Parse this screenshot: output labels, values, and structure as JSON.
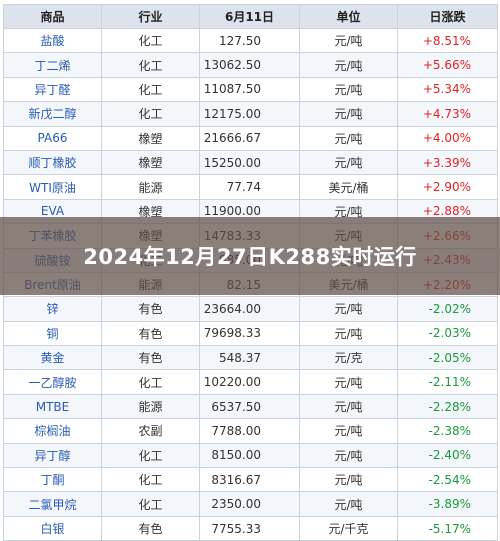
{
  "table": {
    "headers": {
      "name": "商品",
      "category": "行业",
      "price": "6月11日",
      "unit": "单位",
      "change": "日涨跌"
    },
    "rows": [
      {
        "name": "盐酸",
        "category": "化工",
        "price": "127.50",
        "unit": "元/吨",
        "change": "+8.51%",
        "dir": "up"
      },
      {
        "name": "丁二烯",
        "category": "化工",
        "price": "13062.50",
        "unit": "元/吨",
        "change": "+5.66%",
        "dir": "up"
      },
      {
        "name": "异丁醛",
        "category": "化工",
        "price": "11087.50",
        "unit": "元/吨",
        "change": "+5.34%",
        "dir": "up"
      },
      {
        "name": "新戊二醇",
        "category": "化工",
        "price": "12175.00",
        "unit": "元/吨",
        "change": "+4.73%",
        "dir": "up"
      },
      {
        "name": "PA66",
        "category": "橡塑",
        "price": "21666.67",
        "unit": "元/吨",
        "change": "+4.00%",
        "dir": "up"
      },
      {
        "name": "顺丁橡胶",
        "category": "橡塑",
        "price": "15250.00",
        "unit": "元/吨",
        "change": "+3.39%",
        "dir": "up"
      },
      {
        "name": "WTI原油",
        "category": "能源",
        "price": "77.74",
        "unit": "美元/桶",
        "change": "+2.90%",
        "dir": "up"
      },
      {
        "name": "EVA",
        "category": "橡塑",
        "price": "11900.00",
        "unit": "元/吨",
        "change": "+2.88%",
        "dir": "up"
      },
      {
        "name": "丁苯橡胶",
        "category": "橡塑",
        "price": "14783.33",
        "unit": "元/吨",
        "change": "+2.66%",
        "dir": "up"
      },
      {
        "name": "硫酸铵",
        "category": "化工",
        "price": "985.00",
        "unit": "元/吨",
        "change": "+2.43%",
        "dir": "up"
      },
      {
        "name": "Brent原油",
        "category": "能源",
        "price": "82.15",
        "unit": "美元/桶",
        "change": "+2.20%",
        "dir": "up"
      },
      {
        "name": "锌",
        "category": "有色",
        "price": "23664.00",
        "unit": "元/吨",
        "change": "-2.02%",
        "dir": "down"
      },
      {
        "name": "铜",
        "category": "有色",
        "price": "79698.33",
        "unit": "元/吨",
        "change": "-2.03%",
        "dir": "down"
      },
      {
        "name": "黄金",
        "category": "有色",
        "price": "548.37",
        "unit": "元/克",
        "change": "-2.05%",
        "dir": "down"
      },
      {
        "name": "一乙醇胺",
        "category": "化工",
        "price": "10220.00",
        "unit": "元/吨",
        "change": "-2.11%",
        "dir": "down"
      },
      {
        "name": "MTBE",
        "category": "能源",
        "price": "6537.50",
        "unit": "元/吨",
        "change": "-2.28%",
        "dir": "down"
      },
      {
        "name": "棕榈油",
        "category": "农副",
        "price": "7788.00",
        "unit": "元/吨",
        "change": "-2.38%",
        "dir": "down"
      },
      {
        "name": "异丁醇",
        "category": "化工",
        "price": "8150.00",
        "unit": "元/吨",
        "change": "-2.40%",
        "dir": "down"
      },
      {
        "name": "丁酮",
        "category": "化工",
        "price": "8316.67",
        "unit": "元/吨",
        "change": "-2.54%",
        "dir": "down"
      },
      {
        "name": "二氯甲烷",
        "category": "化工",
        "price": "2350.00",
        "unit": "元/吨",
        "change": "-3.89%",
        "dir": "down"
      },
      {
        "name": "白银",
        "category": "有色",
        "price": "7755.33",
        "unit": "元/千克",
        "change": "-5.17%",
        "dir": "down"
      }
    ]
  },
  "overlay": {
    "title": "2024年12月27日K288实时运行"
  },
  "colors": {
    "up": "#e02424",
    "down": "#1a9a3a",
    "name_link": "#2a5bb5",
    "header_bg": "#dde3ec"
  }
}
